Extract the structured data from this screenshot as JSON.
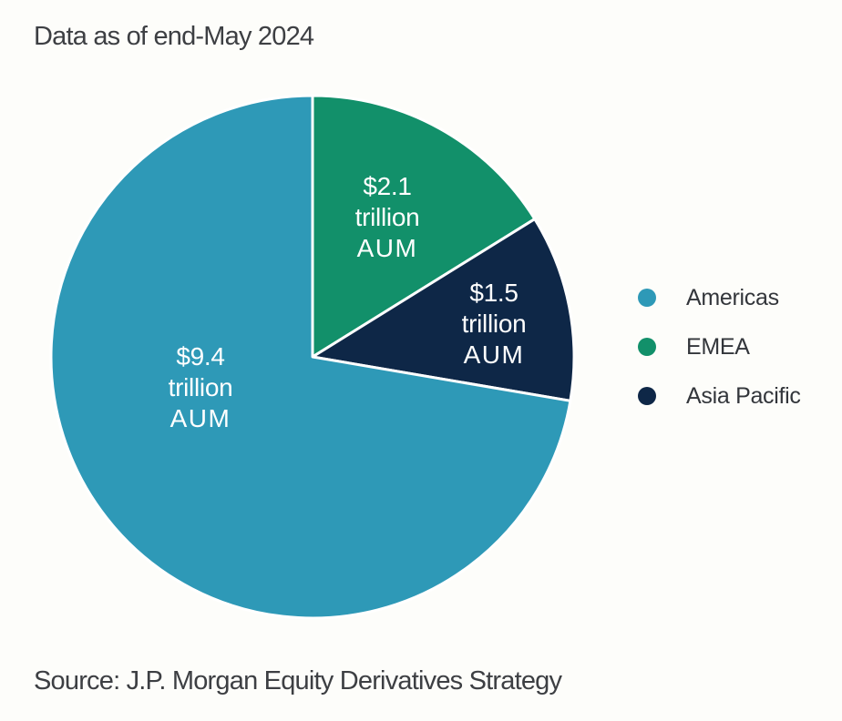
{
  "page": {
    "title": "Data as of end-May 2024",
    "source": "Source: J.P. Morgan Equity Derivatives Strategy",
    "background_color": "#fdfdfa",
    "text_color": "#3d3f43"
  },
  "legend": {
    "position": "right",
    "items": [
      {
        "label": "Americas",
        "color": "#2e99b7"
      },
      {
        "label": "EMEA",
        "color": "#12906a"
      },
      {
        "label": "Asia Pacific",
        "color": "#0e2747"
      }
    ]
  },
  "chart_data": {
    "type": "pie",
    "title": "Data as of end-May 2024",
    "unit": "USD trillions AUM",
    "total": 13.0,
    "start_angle_deg": 0,
    "direction": "clockwise",
    "divider_color": "#ffffff",
    "divider_width": 3,
    "label_color": "#ffffff",
    "slices": [
      {
        "label": "EMEA",
        "value": 2.1,
        "color": "#12906a",
        "label_lines": [
          "$2.1",
          "trillion",
          "AUM"
        ]
      },
      {
        "label": "Asia Pacific",
        "value": 1.5,
        "color": "#0e2747",
        "label_lines": [
          "$1.5",
          "trillion",
          "AUM"
        ]
      },
      {
        "label": "Americas",
        "value": 9.4,
        "color": "#2e99b7",
        "label_lines": [
          "$9.4",
          "trillion",
          "AUM"
        ]
      }
    ]
  }
}
